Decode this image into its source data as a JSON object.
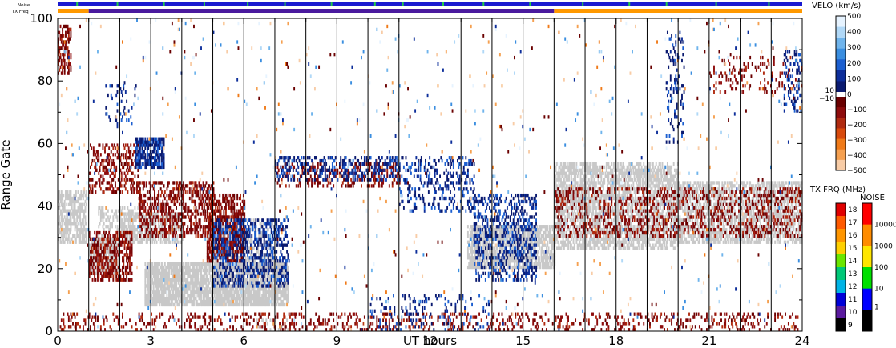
{
  "chart_data": {
    "type": "heatmap",
    "xlabel": "UT hours",
    "ylabel": "Range Gate",
    "xlim": [
      0,
      24
    ],
    "ylim": [
      0,
      100
    ],
    "x_ticks": [
      0,
      3,
      6,
      9,
      12,
      15,
      18,
      21,
      24
    ],
    "y_ticks": [
      0,
      20,
      40,
      60,
      80,
      100
    ],
    "scan_boundaries": [
      1,
      2,
      3,
      4,
      5,
      6,
      7,
      8,
      9,
      10,
      11,
      12,
      13,
      14,
      15,
      16,
      17,
      18,
      19,
      20,
      21,
      22,
      23
    ],
    "top_bars": {
      "noise_label": "Noise",
      "txfreq_label": "TX Freq",
      "noise_color": "#1a1ad0",
      "noise_markers": [
        0.6,
        1.9,
        3.4,
        4.7,
        6.1,
        7.3,
        8.8,
        10.2,
        11.1,
        12.4,
        13.7,
        15.2,
        16.9,
        18.4,
        19.6,
        21.2,
        22.9
      ],
      "txfreq_segments": [
        {
          "start": 0,
          "end": 1,
          "color": "#ff9900"
        },
        {
          "start": 1,
          "end": 16,
          "color": "#4a1a9e"
        },
        {
          "start": 16,
          "end": 24,
          "color": "#ff9900"
        }
      ]
    },
    "velocity_colorbar": {
      "title": "VELO (km/s)",
      "upper_ticks": [
        "500",
        "400",
        "300",
        "200",
        "100",
        "0"
      ],
      "lower_ticks": [
        "−100",
        "−200",
        "−300",
        "−400",
        "−500"
      ],
      "mid_labels": [
        "10",
        "−10"
      ],
      "upper_colors": [
        "#e6f3ff",
        "#b0d8f7",
        "#6fb4ec",
        "#3a8ee0",
        "#1c5fd0",
        "#0d2e9a",
        "#0a1a70"
      ],
      "lower_colors": [
        "#6a0000",
        "#8e0c0c",
        "#b02a10",
        "#d84a0c",
        "#f07a18",
        "#f5a050",
        "#f8cca6"
      ]
    },
    "txfreq_colorbar": {
      "title": "TX FRQ (MHz)",
      "ticks": [
        "18",
        "17",
        "16",
        "15",
        "14",
        "13",
        "12",
        "11",
        "10",
        "9"
      ],
      "colors": [
        "#e00000",
        "#ff5a00",
        "#ff9600",
        "#ffd000",
        "#6ae600",
        "#00c878",
        "#00b4e6",
        "#0000d8",
        "#5a1a9e",
        "#000000"
      ]
    },
    "noise_colorbar": {
      "title": "NOISE",
      "ticks": [
        "10000",
        "1000",
        "100",
        "10",
        "1"
      ],
      "colors": [
        "#ff0000",
        "#ff8c00",
        "#ffe600",
        "#00e000",
        "#0000ff",
        "#000000"
      ]
    },
    "ground_scatter_color": "#c8c8c8",
    "regions": [
      {
        "kind": "gs",
        "x": [
          0.0,
          0.9
        ],
        "g": [
          28,
          45
        ],
        "density": 0.65
      },
      {
        "kind": "gs",
        "x": [
          1.0,
          2.0
        ],
        "g": [
          18,
          30
        ],
        "density": 0.8
      },
      {
        "kind": "gs",
        "x": [
          1.3,
          2.6
        ],
        "g": [
          30,
          40
        ],
        "density": 0.35
      },
      {
        "kind": "gs",
        "x": [
          2.0,
          4.0
        ],
        "g": [
          28,
          38
        ],
        "density": 0.55
      },
      {
        "kind": "gs",
        "x": [
          2.8,
          7.4
        ],
        "g": [
          8,
          22
        ],
        "density": 0.85
      },
      {
        "kind": "gs",
        "x": [
          4.8,
          7.0
        ],
        "g": [
          20,
          36
        ],
        "density": 0.35
      },
      {
        "kind": "gs",
        "x": [
          13.2,
          16.0
        ],
        "g": [
          20,
          34
        ],
        "density": 0.75
      },
      {
        "kind": "gs",
        "x": [
          16.0,
          20.0
        ],
        "g": [
          26,
          54
        ],
        "density": 0.6
      },
      {
        "kind": "gs",
        "x": [
          20.0,
          24.0
        ],
        "g": [
          28,
          48
        ],
        "density": 0.55
      },
      {
        "kind": "gs",
        "x": [
          6.2,
          7.4
        ],
        "g": [
          0,
          4
        ],
        "density": 0.15
      },
      {
        "kind": "neg",
        "x": [
          0.0,
          0.4
        ],
        "g": [
          82,
          98
        ],
        "density": 0.45
      },
      {
        "kind": "neg",
        "x": [
          1.0,
          2.4
        ],
        "g": [
          16,
          32
        ],
        "density": 0.5
      },
      {
        "kind": "neg",
        "x": [
          1.0,
          2.6
        ],
        "g": [
          44,
          60
        ],
        "density": 0.3
      },
      {
        "kind": "neg",
        "x": [
          2.6,
          5.0
        ],
        "g": [
          30,
          48
        ],
        "density": 0.4
      },
      {
        "kind": "neg",
        "x": [
          4.8,
          6.0
        ],
        "g": [
          22,
          44
        ],
        "density": 0.55
      },
      {
        "kind": "neg",
        "x": [
          0.0,
          24.0
        ],
        "g": [
          0,
          6
        ],
        "density": 0.18
      },
      {
        "kind": "neg",
        "x": [
          16.0,
          24.0
        ],
        "g": [
          30,
          46
        ],
        "density": 0.22
      },
      {
        "kind": "neg",
        "x": [
          21.0,
          24.0
        ],
        "g": [
          76,
          88
        ],
        "density": 0.12
      },
      {
        "kind": "neg",
        "x": [
          7.0,
          11.0
        ],
        "g": [
          46,
          54
        ],
        "density": 0.25
      },
      {
        "kind": "pos",
        "x": [
          2.5,
          3.4
        ],
        "g": [
          52,
          62
        ],
        "density": 0.7
      },
      {
        "kind": "pos",
        "x": [
          5.0,
          7.4
        ],
        "g": [
          14,
          36
        ],
        "density": 0.35
      },
      {
        "kind": "pos",
        "x": [
          7.0,
          11.0
        ],
        "g": [
          48,
          56
        ],
        "density": 0.3
      },
      {
        "kind": "pos",
        "x": [
          11.0,
          13.4
        ],
        "g": [
          38,
          56
        ],
        "density": 0.2
      },
      {
        "kind": "pos",
        "x": [
          13.4,
          15.4
        ],
        "g": [
          16,
          44
        ],
        "density": 0.3
      },
      {
        "kind": "pos",
        "x": [
          10.0,
          14.0
        ],
        "g": [
          0,
          12
        ],
        "density": 0.1
      },
      {
        "kind": "pos",
        "x": [
          1.5,
          2.5
        ],
        "g": [
          66,
          80
        ],
        "density": 0.12
      },
      {
        "kind": "pos",
        "x": [
          19.6,
          20.2
        ],
        "g": [
          60,
          96
        ],
        "density": 0.15
      },
      {
        "kind": "pos",
        "x": [
          23.4,
          24.0
        ],
        "g": [
          70,
          90
        ],
        "density": 0.2
      },
      {
        "kind": "mix",
        "x": [
          0.0,
          24.0
        ],
        "g": [
          0,
          100
        ],
        "density": 0.012
      }
    ]
  }
}
